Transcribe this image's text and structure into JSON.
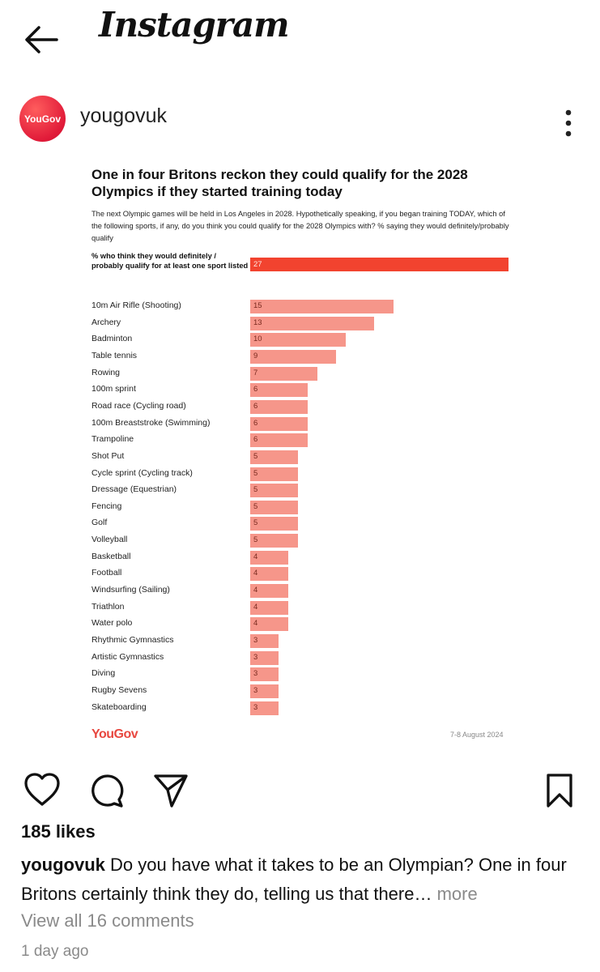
{
  "app": {
    "brand": "Instagram",
    "back_icon": "arrow-left-icon"
  },
  "post": {
    "username": "yougovuk",
    "avatar_text": "YouGov",
    "more_icon": "vertical-dots-icon"
  },
  "chart_data": {
    "type": "bar",
    "title": "One in four Britons reckon they could qualify for the 2028 Olympics if they started training today",
    "subtitle": "The next Olympic games will be held in Los Angeles in 2028. Hypothetically speaking, if you began training TODAY, which of the following sports, if any, do you think you could qualify for the 2028 Olympics with? % saying they would definitely/probably qualify",
    "summary_label": "% who think they would definitely / probably qualify for at least one sport listed",
    "summary_value": 27,
    "categories": [
      "10m Air Rifle (Shooting)",
      "Archery",
      "Badminton",
      "Table tennis",
      "Rowing",
      "100m sprint",
      "Road race (Cycling road)",
      "100m Breaststroke (Swimming)",
      "Trampoline",
      "Shot Put",
      "Cycle sprint (Cycling track)",
      "Dressage (Equestrian)",
      "Fencing",
      "Golf",
      "Volleyball",
      "Basketball",
      "Football",
      "Windsurfing (Sailing)",
      "Triathlon",
      "Water polo",
      "Rhythmic Gymnastics",
      "Artistic Gymnastics",
      "Diving",
      "Rugby Sevens",
      "Skateboarding"
    ],
    "values": [
      15,
      13,
      10,
      9,
      7,
      6,
      6,
      6,
      6,
      5,
      5,
      5,
      5,
      5,
      5,
      4,
      4,
      4,
      4,
      4,
      3,
      3,
      3,
      3,
      3
    ],
    "orientation": "horizontal",
    "summary_color": "#f2432f",
    "bar_color": "#f6968a",
    "footer_brand": "YouGov",
    "date": "7-8 August 2024"
  },
  "actions": {
    "like_icon": "heart-icon",
    "comment_icon": "comment-icon",
    "share_icon": "send-icon",
    "save_icon": "bookmark-icon"
  },
  "likes": "185 likes",
  "caption": {
    "username": "yougovuk",
    "text": "Do you have what it takes to be an Olympian? One in four Britons certainly think they do, telling us that there…",
    "more": "more"
  },
  "comments_link": "View all 16 comments",
  "timestamp": "1 day ago"
}
